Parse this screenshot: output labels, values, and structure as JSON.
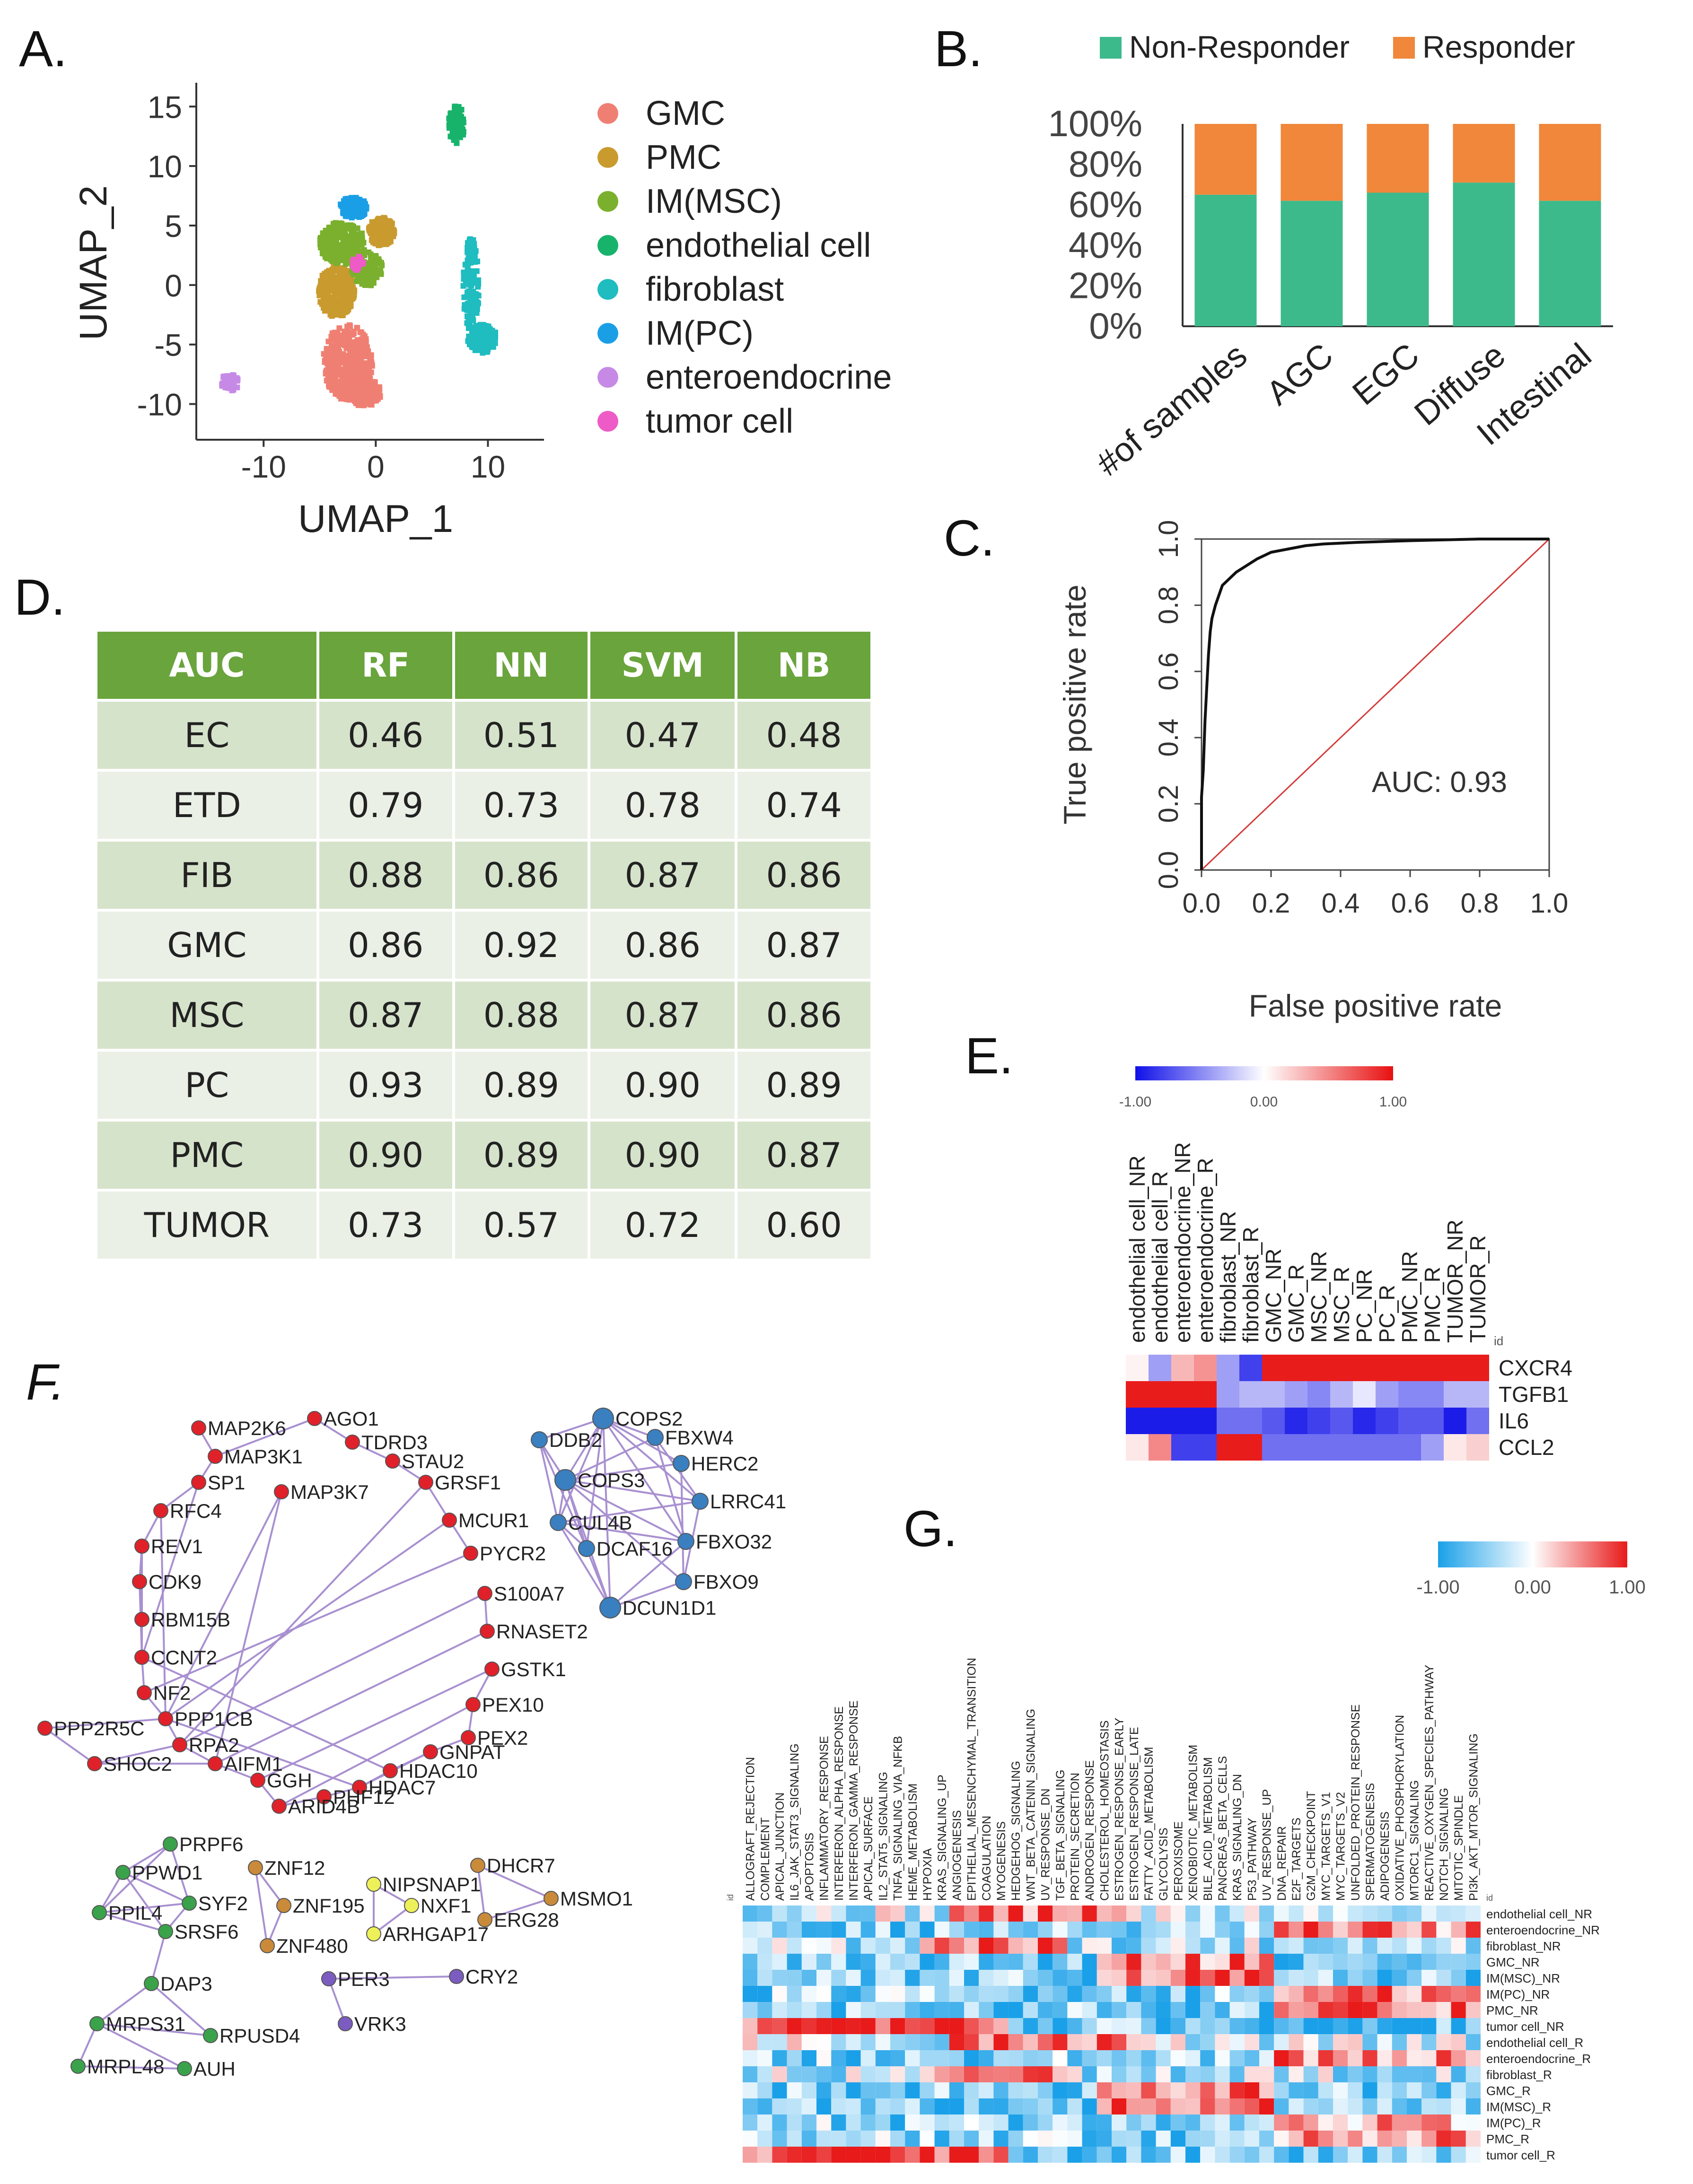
{
  "panel_labels": {
    "a": "A.",
    "b": "B.",
    "c": "C.",
    "d": "D.",
    "e": "E.",
    "f": "F.",
    "g": "G."
  },
  "umap": {
    "xlabel": "UMAP_1",
    "ylabel": "UMAP_2",
    "xticks": [
      "-10",
      "0",
      "10"
    ],
    "yticks": [
      "15",
      "10",
      "5",
      "0",
      "-5",
      "-10"
    ],
    "legend": [
      {
        "label": "GMC",
        "color": "#f07f73"
      },
      {
        "label": "PMC",
        "color": "#c99a2e"
      },
      {
        "label": "IM(MSC)",
        "color": "#7ab02d"
      },
      {
        "label": "endothelial cell",
        "color": "#18b36b"
      },
      {
        "label": "fibroblast",
        "color": "#1fbcc0"
      },
      {
        "label": "IM(PC)",
        "color": "#1a9fe6"
      },
      {
        "label": "enteroendocrine",
        "color": "#c68ae6"
      },
      {
        "label": "tumor cell",
        "color": "#ee5bc6"
      }
    ]
  },
  "chart_data": [
    {
      "type": "bar",
      "subtype": "stacked-percent",
      "categories": [
        "#of samples",
        "AGC",
        "EGC",
        "Diffuse",
        "Intestinal"
      ],
      "series": [
        {
          "name": "Non-Responder",
          "color": "#3dba8c",
          "values": [
            65,
            62,
            66,
            71,
            62
          ]
        },
        {
          "name": "Responder",
          "color": "#f0873a",
          "values": [
            35,
            38,
            34,
            29,
            38
          ]
        }
      ],
      "ylim": [
        0,
        100
      ],
      "yticks": [
        "0%",
        "20%",
        "40%",
        "60%",
        "80%",
        "100%"
      ],
      "legend_position": "top"
    },
    {
      "type": "line",
      "title": "",
      "xlabel": "False positive rate",
      "ylabel": "True positive rate",
      "xlim": [
        0,
        1
      ],
      "ylim": [
        0,
        1
      ],
      "xticks": [
        "0.0",
        "0.2",
        "0.4",
        "0.6",
        "0.8",
        "1.0"
      ],
      "yticks": [
        "0.0",
        "0.2",
        "0.4",
        "0.6",
        "0.8",
        "1.0"
      ],
      "annotation": "AUC: 0.93",
      "series": [
        {
          "name": "ROC",
          "x": [
            0,
            0,
            0.005,
            0.01,
            0.015,
            0.02,
            0.025,
            0.03,
            0.04,
            0.05,
            0.06,
            0.08,
            0.1,
            0.13,
            0.16,
            0.2,
            0.25,
            0.3,
            0.35,
            0.45,
            0.6,
            0.8,
            1.0
          ],
          "y": [
            0,
            0.22,
            0.3,
            0.45,
            0.55,
            0.65,
            0.72,
            0.76,
            0.8,
            0.83,
            0.86,
            0.88,
            0.9,
            0.92,
            0.94,
            0.96,
            0.97,
            0.98,
            0.985,
            0.99,
            0.995,
            1.0,
            1.0
          ]
        }
      ],
      "diagonal": true
    }
  ],
  "auc_table": {
    "headers": [
      "AUC",
      "RF",
      "NN",
      "SVM",
      "NB"
    ],
    "rows": [
      [
        "EC",
        "0.46",
        "0.51",
        "0.47",
        "0.48"
      ],
      [
        "ETD",
        "0.79",
        "0.73",
        "0.78",
        "0.74"
      ],
      [
        "FIB",
        "0.88",
        "0.86",
        "0.87",
        "0.86"
      ],
      [
        "GMC",
        "0.86",
        "0.92",
        "0.86",
        "0.87"
      ],
      [
        "MSC",
        "0.87",
        "0.88",
        "0.87",
        "0.86"
      ],
      [
        "PC",
        "0.93",
        "0.89",
        "0.90",
        "0.89"
      ],
      [
        "PMC",
        "0.90",
        "0.89",
        "0.90",
        "0.87"
      ],
      [
        "TUMOR",
        "0.73",
        "0.57",
        "0.72",
        "0.60"
      ]
    ]
  },
  "heatmap_e": {
    "scale": [
      "-1.00",
      "0.00",
      "1.00"
    ],
    "id_label": "id",
    "columns": [
      "endothelial cell_NR",
      "endothelial cell_R",
      "enteroendocrine_NR",
      "enteroendocrine_R",
      "fibroblast_NR",
      "fibroblast_R",
      "GMC_NR",
      "GMC_R",
      "MSC_NR",
      "MSC_R",
      "PC_NR",
      "PC_R",
      "PMC_NR",
      "PMC_R",
      "TUMOR_NR",
      "TUMOR_R"
    ],
    "rows": [
      "CXCR4",
      "TGFB1",
      "IL6",
      "CCL2"
    ],
    "values": [
      [
        0.05,
        -0.4,
        0.3,
        0.45,
        -0.4,
        -0.8,
        0.95,
        0.95,
        0.95,
        0.95,
        0.95,
        0.95,
        0.95,
        0.95,
        0.95,
        0.95
      ],
      [
        0.95,
        0.95,
        0.95,
        0.95,
        -0.4,
        -0.3,
        -0.3,
        -0.4,
        -0.5,
        -0.3,
        -0.1,
        -0.4,
        -0.5,
        -0.5,
        -0.3,
        -0.3
      ],
      [
        -0.95,
        -0.95,
        -0.95,
        -0.95,
        -0.6,
        -0.6,
        -0.7,
        -0.9,
        -0.8,
        -0.7,
        -0.9,
        -0.8,
        -0.7,
        -0.7,
        -0.95,
        -0.6
      ],
      [
        0.1,
        0.5,
        -0.8,
        -0.8,
        0.95,
        0.95,
        -0.6,
        -0.6,
        -0.6,
        -0.6,
        -0.6,
        -0.6,
        -0.6,
        -0.4,
        0.1,
        0.2
      ]
    ]
  },
  "network": {
    "nodes": [
      {
        "label": "MAP2K6",
        "g": "r"
      },
      {
        "label": "AGO1",
        "g": "r"
      },
      {
        "label": "TDRD3",
        "g": "r"
      },
      {
        "label": "MAP3K1",
        "g": "r"
      },
      {
        "label": "STAU2",
        "g": "r"
      },
      {
        "label": "SP1",
        "g": "r"
      },
      {
        "label": "MAP3K7",
        "g": "r"
      },
      {
        "label": "GRSF1",
        "g": "r"
      },
      {
        "label": "RFC4",
        "g": "r"
      },
      {
        "label": "MCUR1",
        "g": "r"
      },
      {
        "label": "REV1",
        "g": "r"
      },
      {
        "label": "PYCR2",
        "g": "r"
      },
      {
        "label": "CDK9",
        "g": "r"
      },
      {
        "label": "S100A7",
        "g": "r"
      },
      {
        "label": "RBM15B",
        "g": "r"
      },
      {
        "label": "RNASET2",
        "g": "r"
      },
      {
        "label": "CCNT2",
        "g": "r"
      },
      {
        "label": "GSTK1",
        "g": "r"
      },
      {
        "label": "NF2",
        "g": "r"
      },
      {
        "label": "PEX10",
        "g": "r"
      },
      {
        "label": "PPP1CB",
        "g": "r"
      },
      {
        "label": "PEX2",
        "g": "r"
      },
      {
        "label": "PPP2R5C",
        "g": "r"
      },
      {
        "label": "RPA2",
        "g": "r"
      },
      {
        "label": "GNPAT",
        "g": "r"
      },
      {
        "label": "SHOC2",
        "g": "r"
      },
      {
        "label": "AIFM1",
        "g": "r"
      },
      {
        "label": "HDAC10",
        "g": "r"
      },
      {
        "label": "GGH",
        "g": "r"
      },
      {
        "label": "HDAC7",
        "g": "r"
      },
      {
        "label": "PHF12",
        "g": "r"
      },
      {
        "label": "ARID4B",
        "g": "r"
      },
      {
        "label": "COPS2",
        "g": "b"
      },
      {
        "label": "DDB2",
        "g": "b"
      },
      {
        "label": "FBXW4",
        "g": "b"
      },
      {
        "label": "HERC2",
        "g": "b"
      },
      {
        "label": "COPS3",
        "g": "b"
      },
      {
        "label": "LRRC41",
        "g": "b"
      },
      {
        "label": "CUL4B",
        "g": "b"
      },
      {
        "label": "FBXO32",
        "g": "b"
      },
      {
        "label": "DCAF16",
        "g": "b"
      },
      {
        "label": "FBXO9",
        "g": "b"
      },
      {
        "label": "DCUN1D1",
        "g": "b"
      },
      {
        "label": "PRPF6",
        "g": "g"
      },
      {
        "label": "PPWD1",
        "g": "g"
      },
      {
        "label": "SYF2",
        "g": "g"
      },
      {
        "label": "PPIL4",
        "g": "g"
      },
      {
        "label": "SRSF6",
        "g": "g"
      },
      {
        "label": "DAP3",
        "g": "g"
      },
      {
        "label": "MRPS31",
        "g": "g"
      },
      {
        "label": "RPUSD4",
        "g": "g"
      },
      {
        "label": "MRPL48",
        "g": "g"
      },
      {
        "label": "AUH",
        "g": "g"
      },
      {
        "label": "ZNF12",
        "g": "o"
      },
      {
        "label": "ZNF195",
        "g": "o"
      },
      {
        "label": "ZNF480",
        "g": "o"
      },
      {
        "label": "NIPSNAP1",
        "g": "y"
      },
      {
        "label": "NXF1",
        "g": "y"
      },
      {
        "label": "ARHGAP17",
        "g": "y"
      },
      {
        "label": "DHCR7",
        "g": "o"
      },
      {
        "label": "MSMO1",
        "g": "o"
      },
      {
        "label": "ERG28",
        "g": "o"
      },
      {
        "label": "PER3",
        "g": "p"
      },
      {
        "label": "CRY2",
        "g": "p"
      },
      {
        "label": "VRK3",
        "g": "p"
      }
    ],
    "colors": {
      "r": "#e0212a",
      "b": "#3a7fc0",
      "g": "#3aa24a",
      "o": "#c98a3a",
      "y": "#eef05a",
      "p": "#7b5cc0"
    }
  },
  "heatmap_g": {
    "scale": [
      "-1.00",
      "0.00",
      "1.00"
    ],
    "id_label": "id",
    "columns": [
      "ALLOGRAFT_REJECTION",
      "COMPLEMENT",
      "APICAL_JUNCTION",
      "IL6_JAK_STAT3_SIGNALING",
      "APOPTOSIS",
      "INFLAMMATORY_RESPONSE",
      "INTERFERON_ALPHA_RESPONSE",
      "INTERFERON_GAMMA_RESPONSE",
      "APICAL_SURFACE",
      "IL2_STAT5_SIGNALING",
      "TNFA_SIGNALING_VIA_NFKB",
      "HEME_METABOLISM",
      "HYPOXIA",
      "KRAS_SIGNALING_UP",
      "ANGIOGENESIS",
      "EPITHELIAL_MESENCHYMAL_TRANSITION",
      "COAGULATION",
      "MYOGENESIS",
      "HEDGEHOG_SIGNALING",
      "WNT_BETA_CATENIN_SIGNALING",
      "UV_RESPONSE_DN",
      "TGF_BETA_SIGNALING",
      "PROTEIN_SECRETION",
      "ANDROGEN_RESPONSE",
      "CHOLESTEROL_HOMEOSTASIS",
      "ESTROGEN_RESPONSE_EARLY",
      "ESTROGEN_RESPONSE_LATE",
      "FATTY_ACID_METABOLISM",
      "GLYCOLYSIS",
      "PEROXISOME",
      "XENOBIOTIC_METABOLISM",
      "BILE_ACID_METABOLISM",
      "PANCREAS_BETA_CELLS",
      "KRAS_SIGNALING_DN",
      "P53_PATHWAY",
      "UV_RESPONSE_UP",
      "DNA_REPAIR",
      "E2F_TARGETS",
      "G2M_CHECKPOINT",
      "MYC_TARGETS_V1",
      "MYC_TARGETS_V2",
      "UNFOLDED_PROTEIN_RESPONSE",
      "SPERMATOGENESIS",
      "ADIPOGENESIS",
      "OXIDATIVE_PHOSPHORYLATION",
      "MTORC1_SIGNALING",
      "REACTIVE_OXYGEN_SPECIES_PATHWAY",
      "NOTCH_SIGNALING",
      "MITOTIC_SPINDLE",
      "PI3K_AKT_MTOR_SIGNALING"
    ],
    "rows": [
      "endothelial cell_NR",
      "enteroendocrine_NR",
      "fibroblast_NR",
      "GMC_NR",
      "IM(MSC)_NR",
      "IM(PC)_NR",
      "PMC_NR",
      "tumor cell_NR",
      "endothelial cell_R",
      "enteroendocrine_R",
      "fibroblast_R",
      "GMC_R",
      "IM(MSC)_R",
      "IM(PC)_R",
      "PMC_R",
      "tumor cell_R"
    ]
  }
}
